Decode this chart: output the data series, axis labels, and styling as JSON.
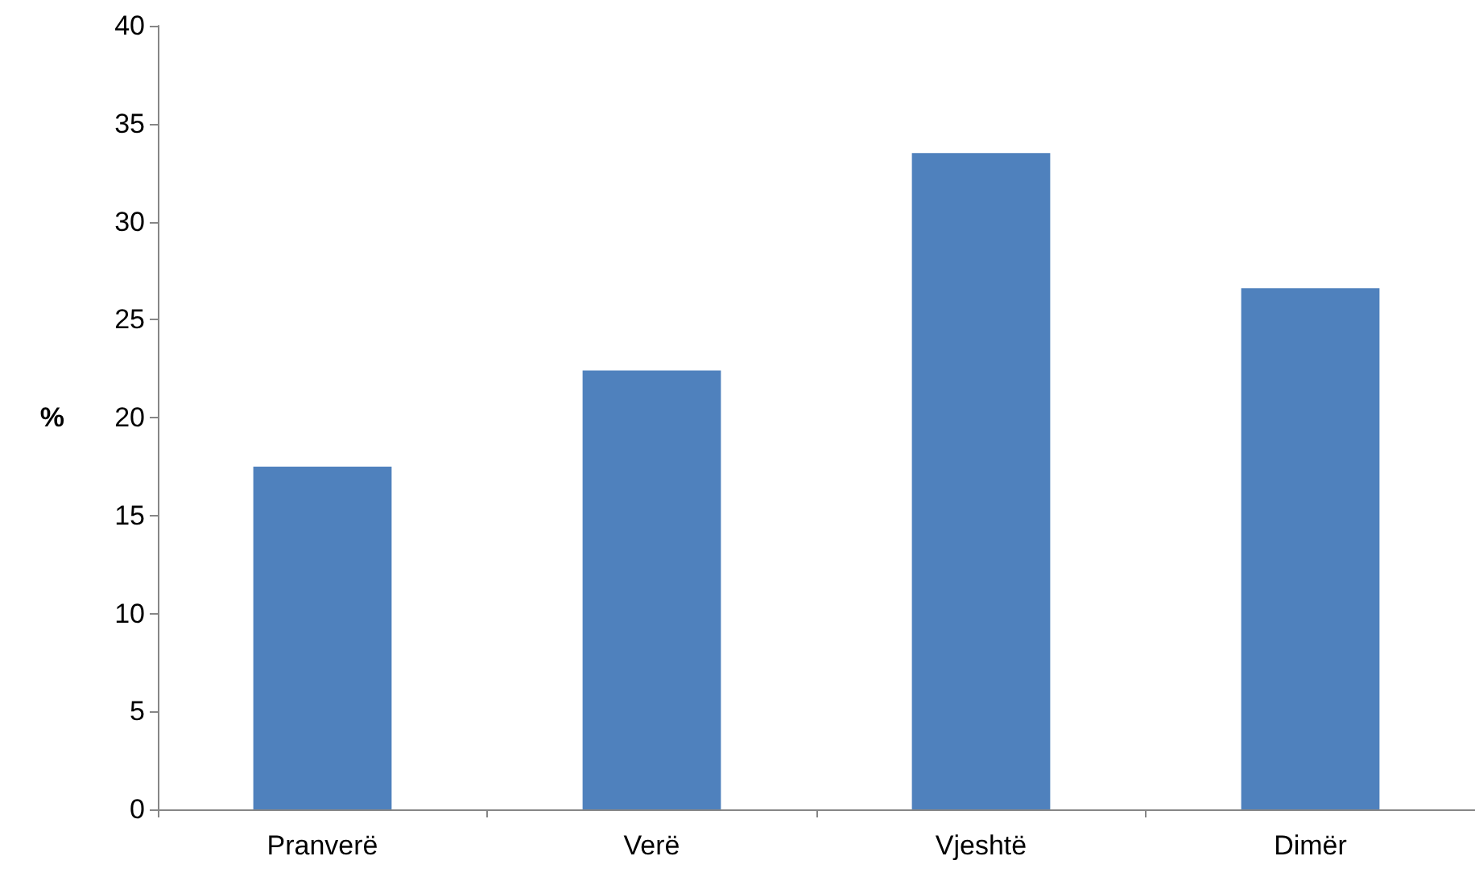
{
  "chart_data": {
    "type": "bar",
    "ylabel": "%",
    "categories": [
      "Pranverë",
      "Verë",
      "Vjeshtë",
      "Dimër"
    ],
    "values": [
      17.5,
      22.4,
      33.5,
      26.6
    ],
    "color": "#4f81bd",
    "ylim": [
      0,
      40
    ],
    "yticks": [
      0,
      5,
      10,
      15,
      20,
      25,
      30,
      35,
      40
    ],
    "grid": false
  }
}
